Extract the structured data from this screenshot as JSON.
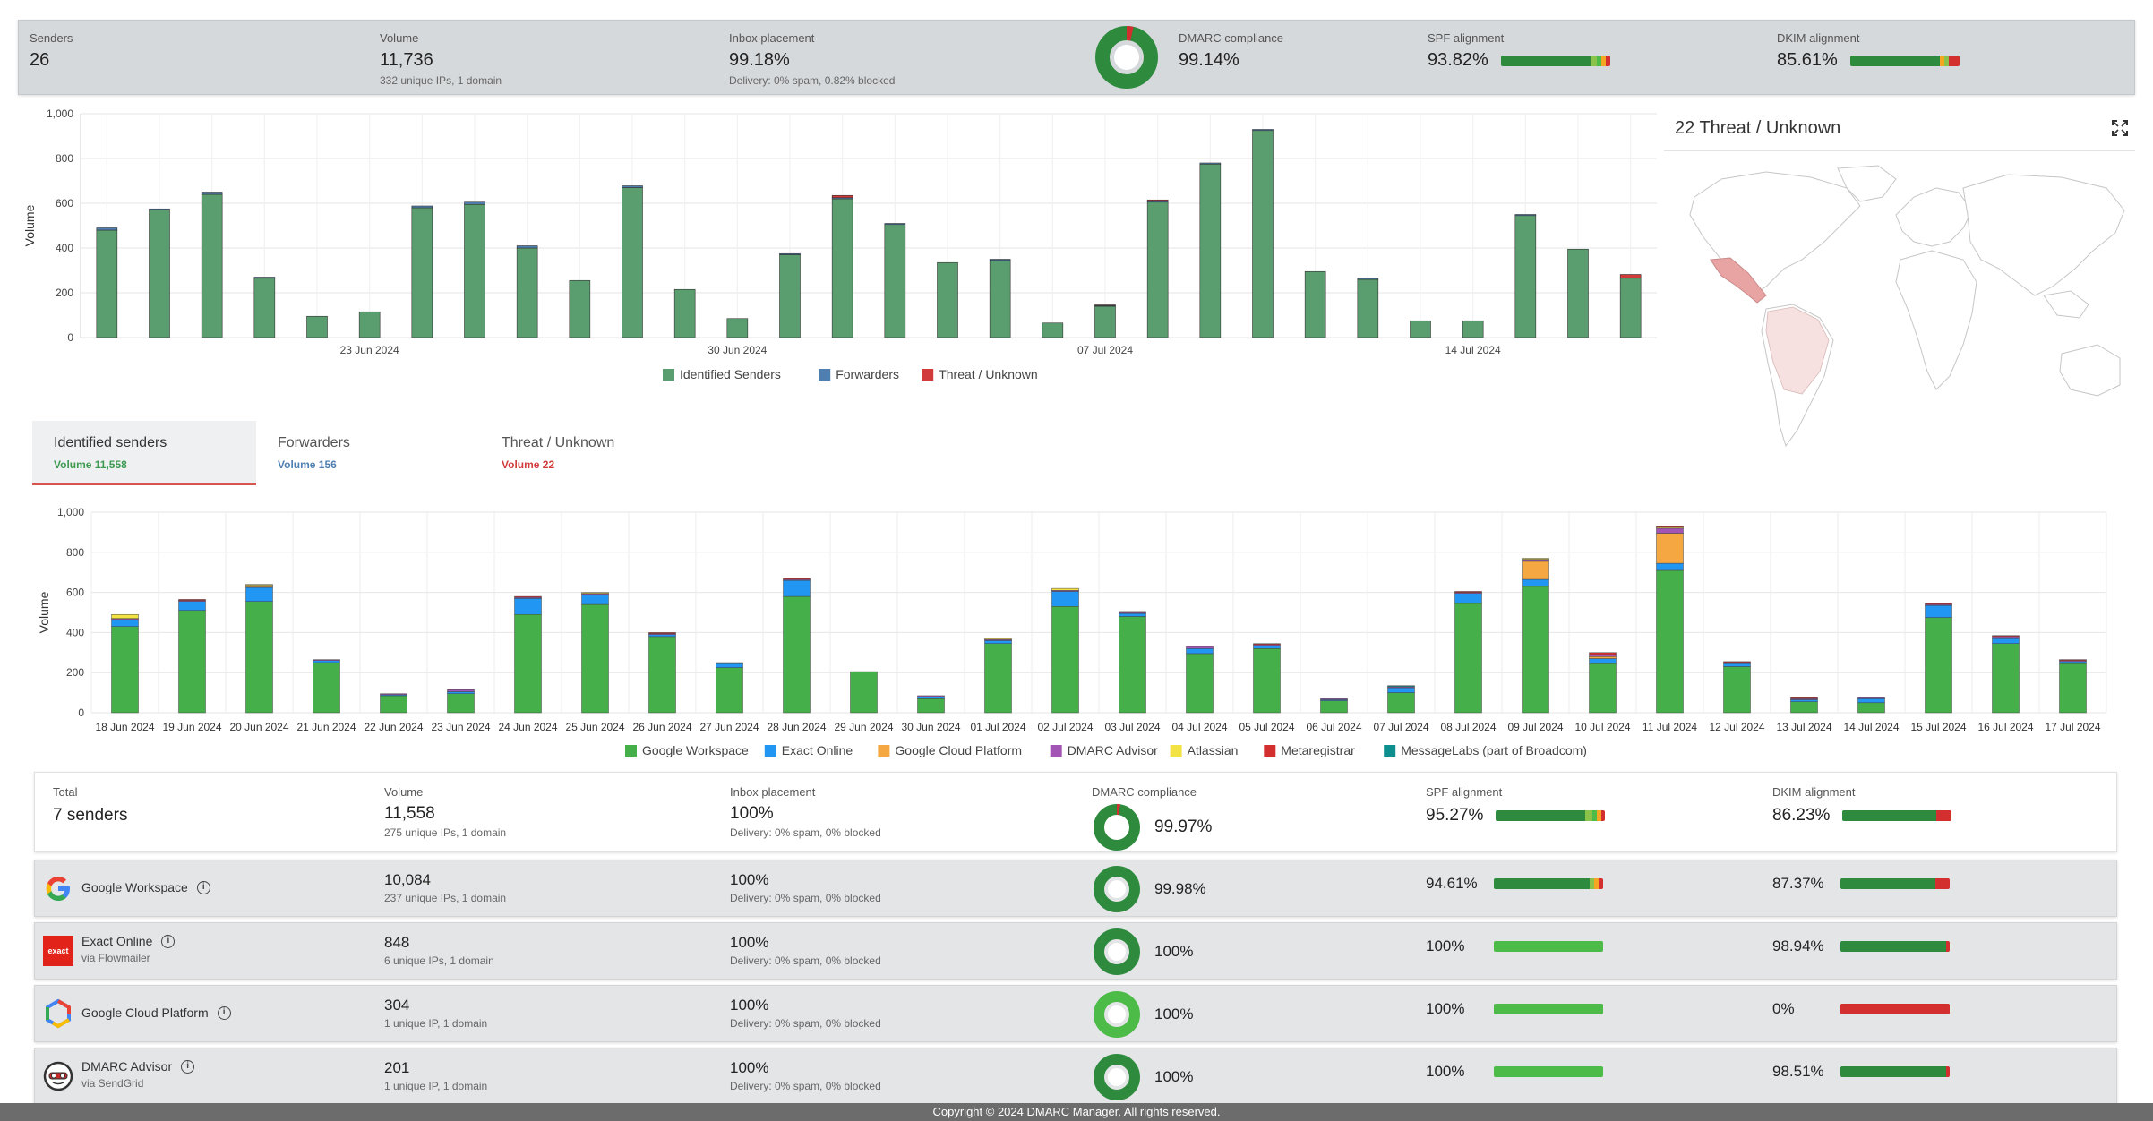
{
  "summary": {
    "senders": {
      "label": "Senders",
      "value": "26"
    },
    "volume": {
      "label": "Volume",
      "value": "11,736",
      "sub": "332 unique IPs, 1 domain"
    },
    "inbox": {
      "label": "Inbox placement",
      "value": "99.18%",
      "sub": "Delivery: 0% spam, 0.82% blocked"
    },
    "dmarc": {
      "label": "DMARC compliance",
      "value": "99.14%",
      "fraction": 0.9914
    },
    "spf": {
      "label": "SPF alignment",
      "value": "93.82%",
      "segments": [
        0.82,
        0.06,
        0.04,
        0.04,
        0.04
      ]
    },
    "dkim": {
      "label": "DKIM alignment",
      "value": "85.61%",
      "segments": [
        0.82,
        0.04,
        0.04,
        0.1
      ]
    }
  },
  "colors": {
    "identified": "#5a9e6f",
    "forwarders": "#4f7fb0",
    "threat": "#d13b3b",
    "google_workspace": "#45b04a",
    "exact_online": "#2196f3",
    "gcp": "#f5a742",
    "dmarc_advisor": "#a355b5",
    "atlassian": "#f3e244",
    "metaregistrar": "#d32f2f",
    "messagelabs": "#0d8f8f",
    "bar_dark": "#2e8b3e",
    "bar_mid": "#8bc34a",
    "bar_orange": "#f5a623",
    "bar_red": "#d32f2f",
    "bar_light": "#4cbb47"
  },
  "chart1": {
    "type": "bar",
    "ylabel": "Volume",
    "ylim": [
      0,
      1000
    ],
    "yticks": [
      "0",
      "200",
      "400",
      "600",
      "800",
      "1,000"
    ],
    "xlabels": [
      {
        "label": "23 Jun 2024",
        "index": 5
      },
      {
        "label": "30 Jun 2024",
        "index": 12
      },
      {
        "label": "07 Jul 2024",
        "index": 19
      },
      {
        "label": "14 Jul 2024",
        "index": 26
      }
    ],
    "legend": [
      "Identified Senders",
      "Forwarders",
      "Threat / Unknown"
    ],
    "series": [
      {
        "name": "Identified Senders",
        "values": [
          480,
          570,
          640,
          265,
          95,
          115,
          580,
          595,
          400,
          255,
          670,
          215,
          85,
          370,
          620,
          505,
          335,
          345,
          65,
          140,
          605,
          775,
          925,
          295,
          260,
          75,
          75,
          545,
          395,
          265
        ]
      },
      {
        "name": "Forwarders",
        "values": [
          10,
          5,
          10,
          5,
          0,
          0,
          8,
          10,
          10,
          0,
          8,
          0,
          0,
          5,
          5,
          5,
          0,
          5,
          0,
          3,
          5,
          5,
          5,
          0,
          5,
          0,
          0,
          5,
          0,
          0
        ]
      },
      {
        "name": "Threat / Unknown",
        "values": [
          0,
          0,
          0,
          0,
          0,
          0,
          0,
          0,
          0,
          0,
          0,
          0,
          0,
          0,
          10,
          0,
          0,
          0,
          0,
          3,
          5,
          0,
          0,
          0,
          0,
          0,
          0,
          0,
          0,
          17
        ]
      }
    ]
  },
  "map": {
    "title": "22 Threat / Unknown"
  },
  "tabs": [
    {
      "label": "Identified senders",
      "volume": "Volume 11,558",
      "color": "#3f9a52"
    },
    {
      "label": "Forwarders",
      "volume": "Volume 156",
      "color": "#4f7fb0"
    },
    {
      "label": "Threat / Unknown",
      "volume": "Volume 22",
      "color": "#d13b3b"
    }
  ],
  "chart2": {
    "type": "bar",
    "ylabel": "Volume",
    "ylim": [
      0,
      1000
    ],
    "yticks": [
      "0",
      "200",
      "400",
      "600",
      "800",
      "1,000"
    ],
    "categories": [
      "18 Jun 2024",
      "19 Jun 2024",
      "20 Jun 2024",
      "21 Jun 2024",
      "22 Jun 2024",
      "23 Jun 2024",
      "24 Jun 2024",
      "25 Jun 2024",
      "26 Jun 2024",
      "27 Jun 2024",
      "28 Jun 2024",
      "29 Jun 2024",
      "30 Jun 2024",
      "01 Jul 2024",
      "02 Jul 2024",
      "03 Jul 2024",
      "04 Jul 2024",
      "05 Jul 2024",
      "06 Jul 2024",
      "07 Jul 2024",
      "08 Jul 2024",
      "09 Jul 2024",
      "10 Jul 2024",
      "11 Jul 2024",
      "12 Jul 2024",
      "13 Jul 2024",
      "14 Jul 2024",
      "15 Jul 2024",
      "16 Jul 2024",
      "17 Jul 2024"
    ],
    "legend": [
      "Google Workspace",
      "Exact Online",
      "Google Cloud Platform",
      "DMARC Advisor",
      "Atlassian",
      "Metaregistrar",
      "MessageLabs (part of Broadcom)"
    ],
    "series": [
      {
        "name": "Google Workspace",
        "values": [
          430,
          510,
          555,
          250,
          85,
          95,
          490,
          540,
          380,
          225,
          580,
          205,
          70,
          345,
          530,
          480,
          295,
          320,
          60,
          100,
          545,
          630,
          245,
          710,
          230,
          55,
          50,
          475,
          345,
          245
        ]
      },
      {
        "name": "Exact Online",
        "values": [
          35,
          45,
          70,
          10,
          5,
          10,
          80,
          50,
          10,
          20,
          80,
          0,
          10,
          15,
          75,
          15,
          25,
          15,
          5,
          25,
          50,
          35,
          25,
          35,
          15,
          10,
          20,
          60,
          25,
          10
        ]
      },
      {
        "name": "Google Cloud Platform",
        "values": [
          0,
          0,
          5,
          0,
          0,
          0,
          0,
          0,
          0,
          0,
          0,
          0,
          0,
          0,
          0,
          0,
          0,
          0,
          0,
          0,
          0,
          90,
          10,
          150,
          0,
          0,
          0,
          0,
          0,
          0
        ]
      },
      {
        "name": "DMARC Advisor",
        "values": [
          5,
          5,
          5,
          5,
          5,
          10,
          5,
          5,
          5,
          5,
          5,
          0,
          5,
          5,
          5,
          5,
          10,
          5,
          5,
          5,
          5,
          10,
          10,
          25,
          5,
          5,
          5,
          5,
          10,
          5
        ]
      },
      {
        "name": "Atlassian",
        "values": [
          20,
          0,
          5,
          0,
          0,
          0,
          0,
          5,
          0,
          0,
          0,
          0,
          0,
          5,
          10,
          0,
          0,
          0,
          0,
          0,
          0,
          5,
          0,
          5,
          0,
          0,
          0,
          0,
          0,
          0
        ]
      },
      {
        "name": "Metaregistrar",
        "values": [
          0,
          5,
          0,
          0,
          0,
          0,
          5,
          0,
          5,
          0,
          5,
          0,
          0,
          0,
          0,
          5,
          0,
          5,
          0,
          0,
          5,
          0,
          10,
          5,
          5,
          5,
          0,
          5,
          5,
          5
        ]
      },
      {
        "name": "MessageLabs (part of Broadcom)",
        "values": [
          0,
          0,
          0,
          0,
          0,
          0,
          0,
          0,
          0,
          0,
          0,
          0,
          0,
          0,
          0,
          0,
          0,
          0,
          0,
          5,
          0,
          0,
          0,
          0,
          0,
          0,
          0,
          0,
          0,
          0
        ]
      }
    ]
  },
  "table": {
    "headers": {
      "total": "Total",
      "volume": "Volume",
      "inbox": "Inbox placement",
      "dmarc": "DMARC compliance",
      "spf": "SPF alignment",
      "dkim": "DKIM alignment"
    },
    "total": {
      "senders": "7 senders",
      "volume": "11,558",
      "volume_sub": "275 unique IPs, 1 domain",
      "inbox": "100%",
      "inbox_sub": "Delivery: 0% spam, 0% blocked",
      "dmarc": "99.97%",
      "dmarc_fraction": 0.9997,
      "spf": "95.27%",
      "spf_segments": [
        0.82,
        0.06,
        0.04,
        0.04,
        0.04
      ],
      "dkim": "86.23%",
      "dkim_segments": [
        0.86,
        0.14
      ]
    },
    "rows": [
      {
        "name": "Google Workspace",
        "via": "",
        "logo": "google-icon",
        "volume": "10,084",
        "volume_sub": "237 unique IPs, 1 domain",
        "inbox": "100%",
        "inbox_sub": "Delivery: 0% spam, 0% blocked",
        "dmarc": "99.98%",
        "dmarc_fraction": 0.9998,
        "spf": "94.61%",
        "spf_segments": [
          0.88,
          0.04,
          0.04,
          0.04
        ],
        "dkim": "87.37%",
        "dkim_segments": [
          0.87,
          0.13
        ]
      },
      {
        "name": "Exact Online",
        "via": "via Flowmailer",
        "logo": "exact-icon",
        "volume": "848",
        "volume_sub": "6 unique IPs, 1 domain",
        "inbox": "100%",
        "inbox_sub": "Delivery: 0% spam, 0% blocked",
        "dmarc": "100%",
        "dmarc_fraction": 1,
        "spf": "100%",
        "spf_segments": [
          1
        ],
        "dkim": "98.94%",
        "dkim_segments": [
          0.97,
          0.03
        ]
      },
      {
        "name": "Google Cloud Platform",
        "via": "",
        "logo": "gcp-icon",
        "volume": "304",
        "volume_sub": "1 unique IP, 1 domain",
        "inbox": "100%",
        "inbox_sub": "Delivery: 0% spam, 0% blocked",
        "dmarc": "100%",
        "dmarc_fraction": 1,
        "spf": "100%",
        "spf_segments": [
          1
        ],
        "dkim": "0%",
        "dkim_segments": [
          0,
          1
        ]
      },
      {
        "name": "DMARC Advisor",
        "via": "via SendGrid",
        "logo": "dmarc-advisor-icon",
        "volume": "201",
        "volume_sub": "1 unique IP, 1 domain",
        "inbox": "100%",
        "inbox_sub": "Delivery: 0% spam, 0% blocked",
        "dmarc": "100%",
        "dmarc_fraction": 1,
        "spf": "100%",
        "spf_segments": [
          1
        ],
        "dkim": "98.51%",
        "dkim_segments": [
          0.97,
          0.03
        ]
      }
    ]
  },
  "footer": {
    "text": "Copyright © 2024 DMARC Manager. All rights reserved."
  }
}
